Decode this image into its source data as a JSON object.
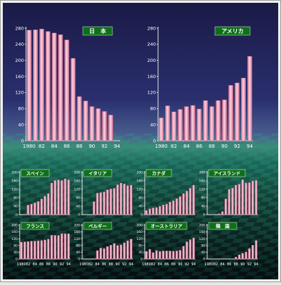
{
  "chart_data": [
    {
      "type": "bar",
      "title": "日　本",
      "categories": [
        "1980",
        "81",
        "82",
        "83",
        "84",
        "85",
        "86",
        "87",
        "88",
        "89",
        "90",
        "91",
        "92",
        "93",
        "94"
      ],
      "x_tick_labels": [
        "1980",
        "82",
        "84",
        "86",
        "88",
        "90",
        "92",
        "94"
      ],
      "ylim": [
        0,
        280
      ],
      "y_ticks": [
        0,
        40,
        80,
        120,
        160,
        200,
        240,
        280
      ],
      "values": [
        275,
        276,
        278,
        272,
        268,
        264,
        251,
        205,
        110,
        99,
        85,
        80,
        73,
        64,
        0
      ],
      "bar_color": "#f2a7c0"
    },
    {
      "type": "bar",
      "title": "アメリカ",
      "categories": [
        "1980",
        "81",
        "82",
        "83",
        "84",
        "85",
        "86",
        "87",
        "88",
        "89",
        "90",
        "91",
        "92",
        "93",
        "94"
      ],
      "x_tick_labels": [
        "1980",
        "82",
        "84",
        "86",
        "88",
        "90",
        "92",
        "94"
      ],
      "ylim": [
        0,
        280
      ],
      "y_ticks": [
        0,
        40,
        80,
        120,
        160,
        200,
        240,
        280
      ],
      "values": [
        57,
        87,
        72,
        78,
        85,
        88,
        79,
        100,
        85,
        100,
        102,
        138,
        144,
        156,
        210
      ],
      "bar_color": "#f2a7c0"
    },
    {
      "type": "bar",
      "title": "スペイン",
      "categories": [
        "1980",
        "81",
        "82",
        "83",
        "84",
        "85",
        "86",
        "87",
        "88",
        "89",
        "90",
        "91",
        "92",
        "93",
        "94"
      ],
      "ylim": [
        0,
        200
      ],
      "y_ticks": [
        0,
        40,
        80,
        120,
        160,
        200
      ],
      "values": [
        0,
        0,
        46,
        50,
        56,
        63,
        75,
        88,
        100,
        150,
        162,
        165,
        162,
        170,
        165
      ],
      "bar_color": "#f2a7c0"
    },
    {
      "type": "bar",
      "title": "イタリア",
      "categories": [
        "1980",
        "81",
        "82",
        "83",
        "84",
        "85",
        "86",
        "87",
        "88",
        "89",
        "90",
        "91",
        "92",
        "93",
        "94"
      ],
      "ylim": [
        0,
        200
      ],
      "y_ticks": [
        0,
        40,
        80,
        120,
        160,
        200
      ],
      "values": [
        0,
        0,
        0,
        62,
        102,
        105,
        108,
        118,
        122,
        125,
        142,
        150,
        146,
        138,
        140
      ],
      "bar_color": "#f2a7c0"
    },
    {
      "type": "bar",
      "title": "カナダ",
      "categories": [
        "1980",
        "81",
        "82",
        "83",
        "84",
        "85",
        "86",
        "87",
        "88",
        "89",
        "90",
        "91",
        "92",
        "93",
        "94"
      ],
      "ylim": [
        0,
        200
      ],
      "y_ticks": [
        0,
        40,
        80,
        120,
        160,
        200
      ],
      "values": [
        20,
        28,
        32,
        34,
        40,
        46,
        50,
        60,
        66,
        76,
        86,
        100,
        112,
        125,
        140
      ],
      "bar_color": "#f2a7c0"
    },
    {
      "type": "bar",
      "title": "アイスランド",
      "categories": [
        "1980",
        "81",
        "82",
        "83",
        "84",
        "85",
        "86",
        "87",
        "88",
        "89",
        "90",
        "91",
        "92",
        "93",
        "94"
      ],
      "ylim": [
        0,
        200
      ],
      "y_ticks": [
        0,
        40,
        80,
        120,
        160,
        200
      ],
      "values": [
        0,
        0,
        0,
        5,
        15,
        75,
        120,
        126,
        140,
        144,
        166,
        150,
        152,
        160,
        162
      ],
      "bar_color": "#f2a7c0"
    },
    {
      "type": "bar",
      "title": "フランス",
      "categories": [
        "1980",
        "81",
        "82",
        "83",
        "84",
        "85",
        "86",
        "87",
        "88",
        "89",
        "90",
        "91",
        "92",
        "93",
        "94"
      ],
      "x_tick_labels": [
        "1980",
        "82",
        "84",
        "86",
        "88",
        "90",
        "92",
        "94"
      ],
      "ylim": [
        0,
        200
      ],
      "y_ticks": [
        0,
        40,
        80,
        120,
        160,
        200
      ],
      "values": [
        100,
        102,
        104,
        106,
        106,
        108,
        110,
        114,
        118,
        140,
        140,
        140,
        150,
        150,
        150
      ],
      "bar_color": "#f2a7c0"
    },
    {
      "type": "bar",
      "title": "ベルギー",
      "categories": [
        "1980",
        "81",
        "82",
        "83",
        "84",
        "85",
        "86",
        "87",
        "88",
        "89",
        "90",
        "91",
        "92",
        "93",
        "94"
      ],
      "x_tick_labels": [
        "1980",
        "82",
        "84",
        "86",
        "88",
        "90",
        "92",
        "94"
      ],
      "ylim": [
        0,
        200
      ],
      "y_ticks": [
        0,
        40,
        80,
        120,
        160,
        200
      ],
      "values": [
        0,
        0,
        0,
        0,
        50,
        65,
        62,
        74,
        82,
        92,
        80,
        84,
        96,
        108,
        118
      ],
      "bar_color": "#f2a7c0"
    },
    {
      "type": "bar",
      "title": "オーストラリア",
      "categories": [
        "1980",
        "81",
        "82",
        "83",
        "84",
        "85",
        "86",
        "87",
        "88",
        "89",
        "90",
        "91",
        "92",
        "93",
        "94"
      ],
      "x_tick_labels": [
        "1980",
        "82",
        "84",
        "86",
        "88",
        "90",
        "92",
        "94"
      ],
      "ylim": [
        0,
        200
      ],
      "y_ticks": [
        0,
        40,
        80,
        120,
        160,
        200
      ],
      "values": [
        45,
        58,
        38,
        50,
        45,
        48,
        48,
        48,
        46,
        48,
        52,
        76,
        102,
        115,
        125
      ],
      "bar_color": "#f2a7c0"
    },
    {
      "type": "bar",
      "title": "韓　国",
      "categories": [
        "1980",
        "81",
        "82",
        "83",
        "84",
        "85",
        "86",
        "87",
        "88",
        "89",
        "90",
        "91",
        "92",
        "93",
        "94"
      ],
      "x_tick_labels": [
        "1980",
        "82",
        "84",
        "86",
        "88",
        "90",
        "92",
        "94"
      ],
      "ylim": [
        0,
        200
      ],
      "y_ticks": [
        0,
        40,
        80,
        120,
        160,
        200
      ],
      "values": [
        0,
        0,
        0,
        0,
        0,
        0,
        0,
        0,
        12,
        25,
        34,
        42,
        62,
        82,
        110
      ],
      "bar_color": "#f2a7c0"
    }
  ]
}
